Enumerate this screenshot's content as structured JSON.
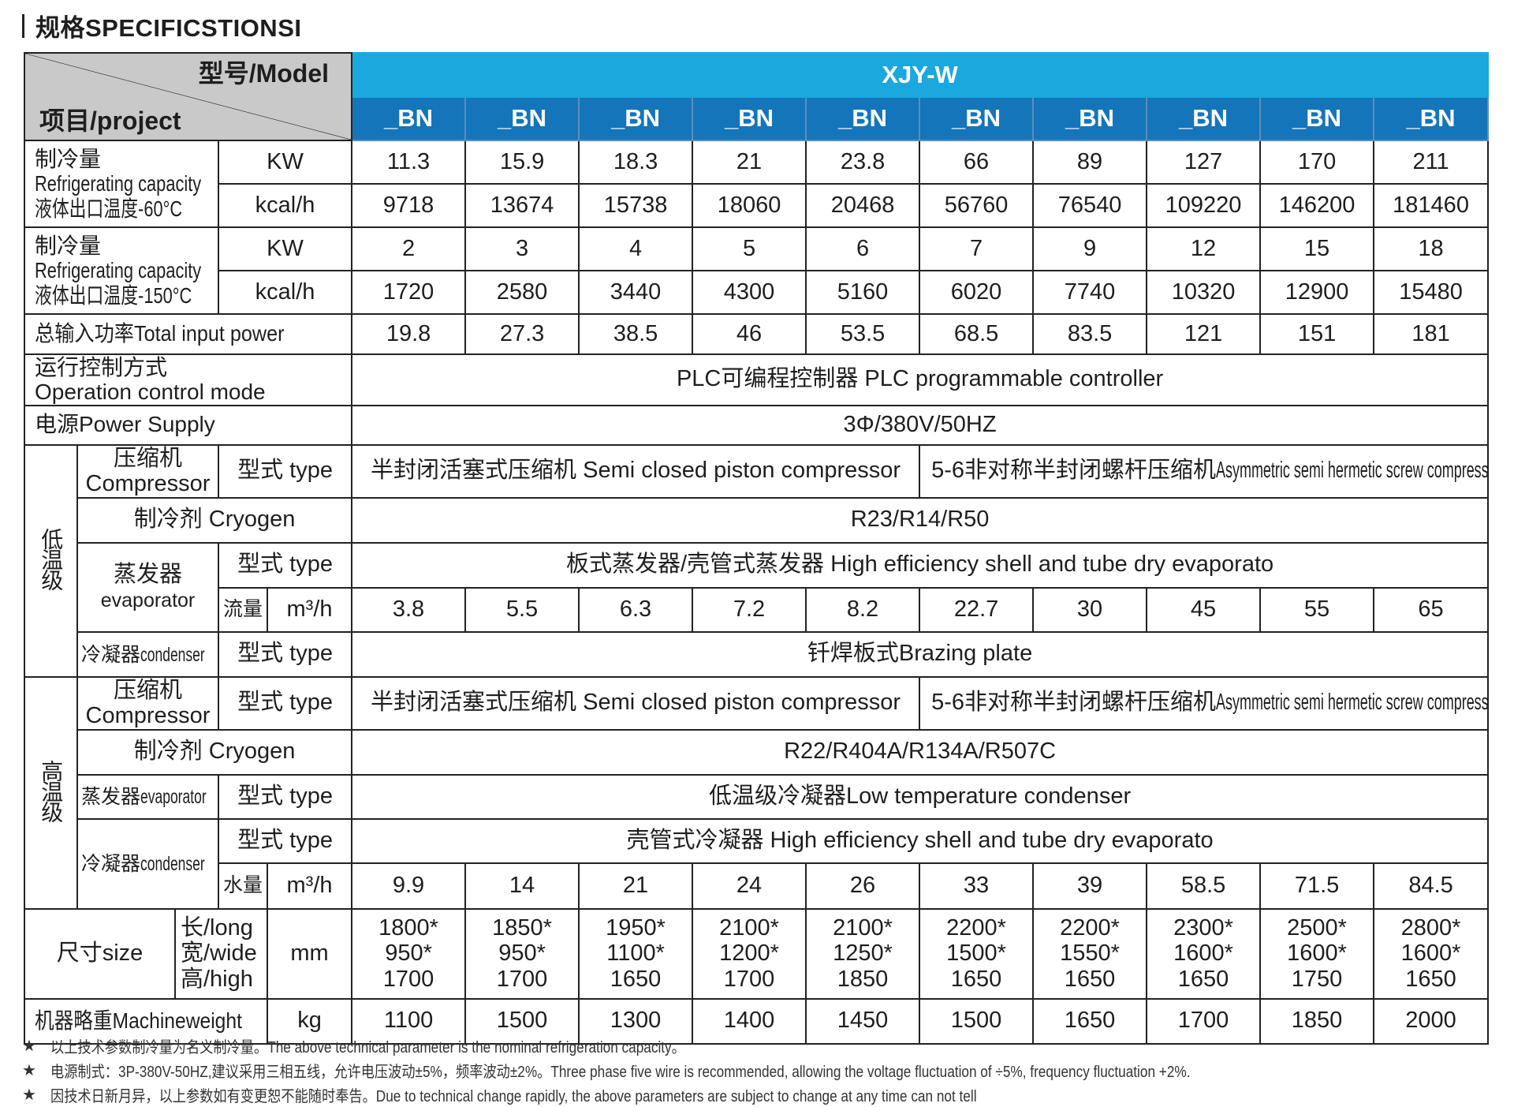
{
  "title": "规格SPECIFICSTIONSI",
  "header": {
    "corner_model": "型号/Model",
    "corner_project": "项目/project",
    "series": "XJY-W",
    "models": [
      "_BN",
      "_BN",
      "_BN",
      "_BN",
      "_BN",
      "_BN",
      "_BN",
      "_BN",
      "_BN",
      "_BN"
    ]
  },
  "cap60": {
    "label_cn": "制冷量",
    "label_en": "Refrigerating capacity",
    "label_temp": "液体出口温度-60°C",
    "unit_kw": "KW",
    "unit_kcal": "kcal/h",
    "kw": [
      "11.3",
      "15.9",
      "18.3",
      "21",
      "23.8",
      "66",
      "89",
      "127",
      "170",
      "211"
    ],
    "kcal": [
      "9718",
      "13674",
      "15738",
      "18060",
      "20468",
      "56760",
      "76540",
      "109220",
      "146200",
      "181460"
    ]
  },
  "cap150": {
    "label_cn": "制冷量",
    "label_en": "Refrigerating capacity",
    "label_temp": "液体出口温度-150°C",
    "unit_kw": "KW",
    "unit_kcal": "kcal/h",
    "kw": [
      "2",
      "3",
      "4",
      "5",
      "6",
      "7",
      "9",
      "12",
      "15",
      "18"
    ],
    "kcal": [
      "1720",
      "2580",
      "3440",
      "4300",
      "5160",
      "6020",
      "7740",
      "10320",
      "12900",
      "15480"
    ]
  },
  "power": {
    "label": "总输入功率Total input power",
    "values": [
      "19.8",
      "27.3",
      "38.5",
      "46",
      "53.5",
      "68.5",
      "83.5",
      "121",
      "151",
      "181"
    ]
  },
  "control": {
    "label_cn": "运行控制方式",
    "label_en": "Operation control mode",
    "value": "PLC可编程控制器 PLC programmable controller"
  },
  "supply": {
    "label": "电源Power Supply",
    "value": "3Φ/380V/50HZ"
  },
  "low": {
    "group": "低温级",
    "compressor_cn": "压缩机",
    "compressor_en": "Compressor",
    "type_label": "型式 type",
    "compressor_a": "半封闭活塞式压缩机 Semi closed piston compressor",
    "compressor_b_cn": "5-6非对称半封闭螺杆压缩机",
    "compressor_b_en": "Asymmetric semi hermetic screw compressor",
    "cryogen_label": "制冷剂 Cryogen",
    "cryogen": "R23/R14/R50",
    "evap_cn": "蒸发器",
    "evap_en": "evaporator",
    "evap_type": "板式蒸发器/壳管式蒸发器 High efficiency shell and tube dry evaporato",
    "flow_label": "流量",
    "flow_unit": "m³/h",
    "flow": [
      "3.8",
      "5.5",
      "6.3",
      "7.2",
      "8.2",
      "22.7",
      "30",
      "45",
      "55",
      "65"
    ],
    "cond_cn": "冷凝器",
    "cond_en": "condenser",
    "cond_type": "钎焊板式Brazing plate"
  },
  "high": {
    "group": "高温级",
    "compressor_cn": "压缩机",
    "compressor_en": "Compressor",
    "type_label": "型式 type",
    "compressor_a": "半封闭活塞式压缩机 Semi closed piston compressor",
    "compressor_b_cn": "5-6非对称半封闭螺杆压缩机",
    "compressor_b_en": "Asymmetric semi hermetic screw compressor",
    "cryogen_label": "制冷剂 Cryogen",
    "cryogen": "R22/R404A/R134A/R507C",
    "evap_cn": "蒸发器",
    "evap_en": "evaporator",
    "evap_type": "低温级冷凝器Low temperature condenser",
    "cond_cn": "冷凝器",
    "cond_en": "condenser",
    "cond_type": "壳管式冷凝器 High efficiency shell and tube dry evaporato",
    "water_label": "水量",
    "water_unit": "m³/h",
    "water": [
      "9.9",
      "14",
      "21",
      "24",
      "26",
      "33",
      "39",
      "58.5",
      "71.5",
      "84.5"
    ]
  },
  "size": {
    "label": "尺寸size",
    "long": "长/long",
    "wide": "宽/wide",
    "high": "高/high",
    "unit": "mm",
    "dims": [
      [
        "1800*",
        "950*",
        "1700"
      ],
      [
        "1850*",
        "950*",
        "1700"
      ],
      [
        "1950*",
        "1100*",
        "1650"
      ],
      [
        "2100*",
        "1200*",
        "1700"
      ],
      [
        "2100*",
        "1250*",
        "1850"
      ],
      [
        "2200*",
        "1500*",
        "1650"
      ],
      [
        "2200*",
        "1550*",
        "1650"
      ],
      [
        "2300*",
        "1600*",
        "1650"
      ],
      [
        "2500*",
        "1600*",
        "1750"
      ],
      [
        "2800*",
        "1600*",
        "1650"
      ]
    ]
  },
  "weight": {
    "label": "机器略重Machineweight",
    "unit": "kg",
    "values": [
      "1100",
      "1500",
      "1300",
      "1400",
      "1450",
      "1500",
      "1650",
      "1700",
      "1850",
      "2000"
    ]
  },
  "notes": {
    "bullet": "★",
    "items": [
      "以上技术参数制冷量为名义制冷量。The above technical parameter is the nominal refrigeration capacity。",
      "电源制式：3P-380V-50HZ,建议采用三相五线，允许电压波动±5%，频率波动±2%。Three phase five wire is recommended, allowing the voltage fluctuation of ÷5%, frequency fluctuation +2%.",
      "因技术日新月异，以上参数如有变更恕不能随时奉告。Due to technical change rapidly, the above parameters are subject to change at any time can not tell"
    ]
  },
  "colors": {
    "series_bg": "#1ba8dc",
    "model_bg": "#1475bb",
    "corner_bg": "#c9c9c9"
  }
}
